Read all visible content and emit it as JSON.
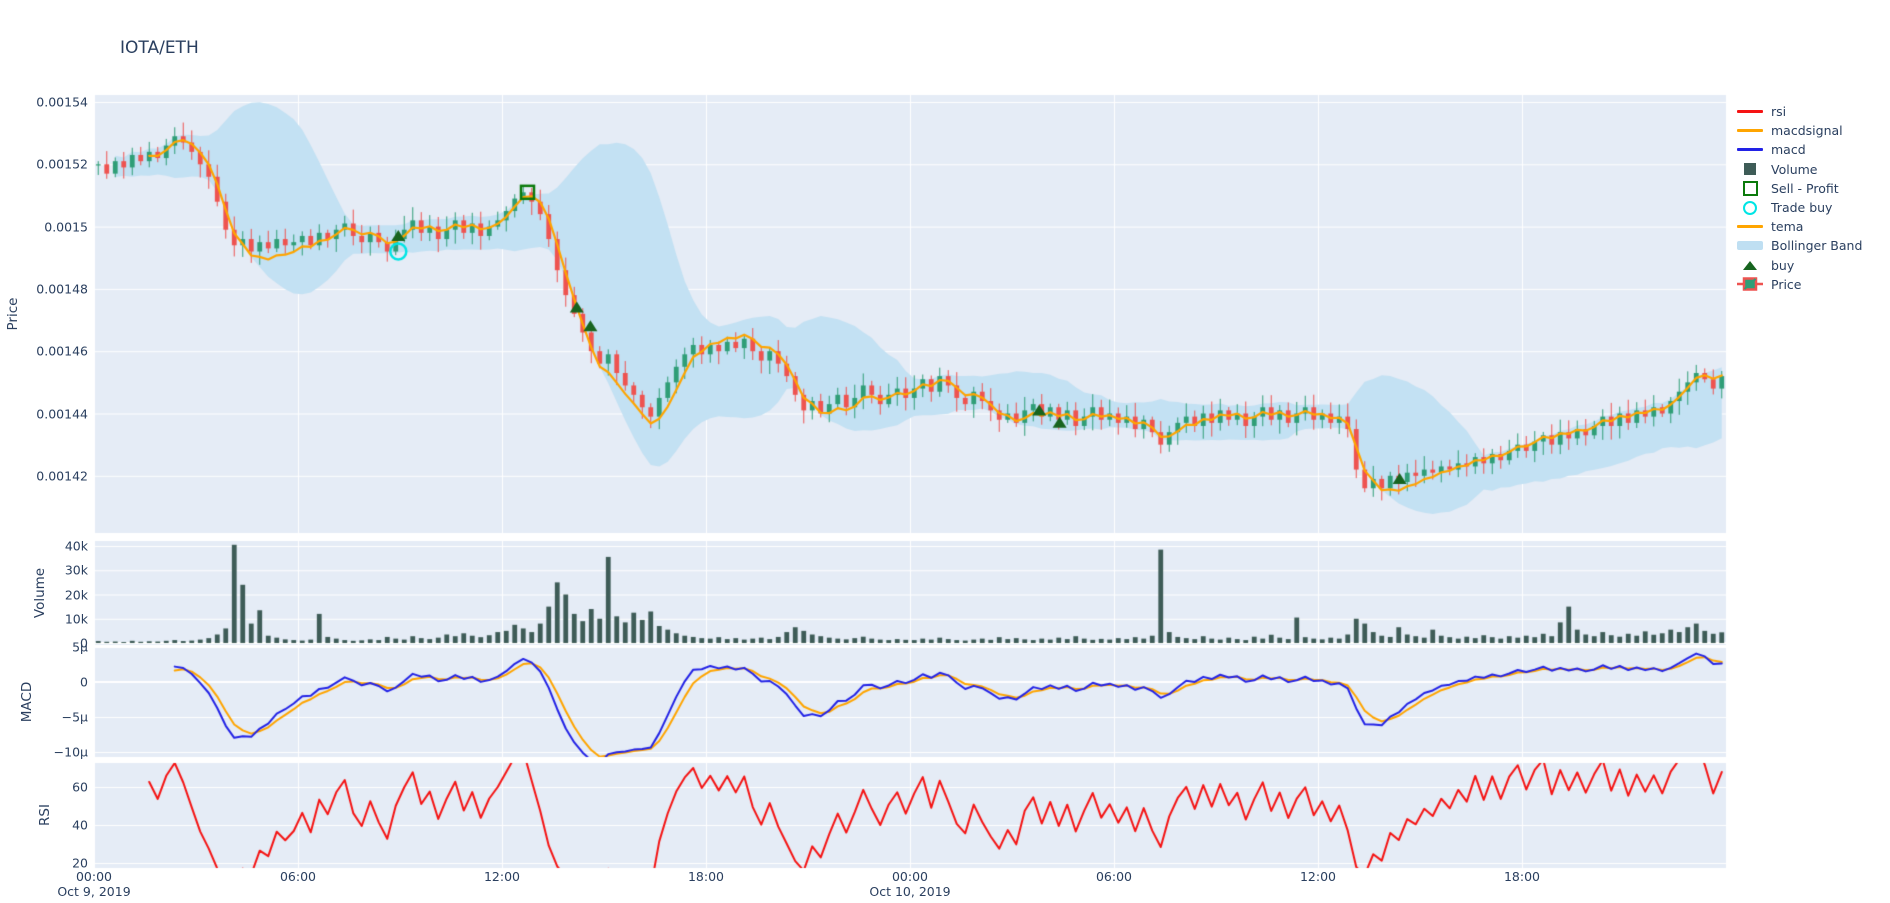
{
  "title": "IOTA/ETH",
  "colors": {
    "plot_bg": "#e5ecf6",
    "grid": "#ffffff",
    "text": "#2a3f5f",
    "candle_up": "#2f9e77",
    "candle_down": "#ee5350",
    "bollinger_fill": "#c3e1f3",
    "tema": "#ffa500",
    "macd": "#2222e6",
    "macdsignal": "#ffa500",
    "rsi": "#f51313",
    "volume_bar": "#3e5c57",
    "buy_marker": "#17641f",
    "sell_marker": "#0b7a0b",
    "trade_buy_marker": "#00e5e5"
  },
  "legend": {
    "items": [
      {
        "label": "rsi",
        "type": "line",
        "color": "#f51313"
      },
      {
        "label": "macdsignal",
        "type": "line",
        "color": "#ffa500"
      },
      {
        "label": "macd",
        "type": "line",
        "color": "#2222e6"
      },
      {
        "label": "Volume",
        "type": "square",
        "color": "#3e5c57"
      },
      {
        "label": "Sell - Profit",
        "type": "square-open",
        "color": "#0b7a0b"
      },
      {
        "label": "Trade buy",
        "type": "circle-open",
        "color": "#00e5e5"
      },
      {
        "label": "tema",
        "type": "line",
        "color": "#ffa500"
      },
      {
        "label": "Bollinger Band",
        "type": "band",
        "color": "#bfdff2"
      },
      {
        "label": "buy",
        "type": "triangle",
        "color": "#17641f"
      },
      {
        "label": "Price",
        "type": "candle",
        "color": "#2f9e77"
      }
    ]
  },
  "axes": {
    "x": {
      "ticks": [
        {
          "t": 0,
          "label": "00:00",
          "date": "Oct 9, 2019"
        },
        {
          "t": 6,
          "label": "06:00"
        },
        {
          "t": 12,
          "label": "12:00"
        },
        {
          "t": 18,
          "label": "18:00"
        },
        {
          "t": 24,
          "label": "00:00",
          "date": "Oct 10, 2019"
        },
        {
          "t": 30,
          "label": "06:00"
        },
        {
          "t": 36,
          "label": "12:00"
        },
        {
          "t": 42,
          "label": "18:00"
        }
      ]
    },
    "price": {
      "title": "Price",
      "ticks": [
        {
          "v": 0.00154,
          "label": "0.00154"
        },
        {
          "v": 0.00152,
          "label": "0.00152"
        },
        {
          "v": 0.0015,
          "label": "0.0015"
        },
        {
          "v": 0.00148,
          "label": "0.00148"
        },
        {
          "v": 0.00146,
          "label": "0.00146"
        },
        {
          "v": 0.00144,
          "label": "0.00144"
        },
        {
          "v": 0.00142,
          "label": "0.00142"
        }
      ]
    },
    "volume": {
      "title": "Volume",
      "ticks": [
        {
          "v": 40,
          "label": "40k"
        },
        {
          "v": 30,
          "label": "30k"
        },
        {
          "v": 20,
          "label": "20k"
        },
        {
          "v": 10,
          "label": "10k"
        },
        {
          "v": 0,
          "label": "0"
        }
      ]
    },
    "macd": {
      "title": "MACD",
      "ticks": [
        {
          "v": 5,
          "label": "5µ"
        },
        {
          "v": 0,
          "label": "0"
        },
        {
          "v": -5,
          "label": "−5µ"
        },
        {
          "v": -10,
          "label": "−10µ"
        }
      ]
    },
    "rsi": {
      "title": "RSI",
      "ticks": [
        {
          "v": 60,
          "label": "60"
        },
        {
          "v": 40,
          "label": "40"
        },
        {
          "v": 20,
          "label": "20"
        }
      ]
    }
  },
  "chart_data": {
    "type": "candlestick",
    "title": "IOTA/ETH",
    "pair": "IOTA/ETH",
    "x_start": "Oct 9, 2019 00:00",
    "x_end": "Oct 10, 2019 24:00",
    "step_hours": 0.25,
    "price_unit_scale": 1e-05,
    "price_axis_range": [
      0.0014016,
      0.0015422
    ],
    "volume_axis_range_k": [
      0,
      42
    ],
    "macd_axis_range_mu": [
      -10.7,
      5.0
    ],
    "rsi_axis_range": [
      17.4,
      72.6
    ],
    "close_1e5": [
      152.0,
      151.7,
      152.1,
      151.9,
      152.3,
      152.1,
      152.4,
      152.2,
      152.6,
      152.9,
      152.7,
      152.4,
      152.0,
      151.6,
      150.8,
      149.9,
      149.4,
      149.6,
      149.2,
      149.5,
      149.3,
      149.6,
      149.4,
      149.5,
      149.7,
      149.4,
      149.8,
      149.6,
      149.9,
      150.1,
      149.7,
      149.5,
      149.8,
      149.5,
      149.2,
      149.6,
      149.9,
      150.2,
      149.8,
      150.0,
      149.6,
      149.9,
      150.2,
      149.8,
      150.1,
      149.7,
      150.0,
      150.2,
      150.5,
      150.9,
      151.1,
      150.8,
      150.4,
      149.6,
      148.6,
      147.8,
      147.2,
      146.6,
      146.0,
      145.6,
      145.9,
      145.3,
      144.9,
      144.6,
      144.2,
      143.9,
      144.5,
      145.0,
      145.5,
      145.9,
      146.2,
      145.9,
      146.2,
      146.0,
      146.3,
      146.1,
      146.4,
      146.0,
      145.7,
      146.0,
      145.6,
      145.2,
      144.6,
      144.1,
      144.4,
      144.0,
      144.3,
      144.6,
      144.2,
      144.5,
      144.9,
      144.6,
      144.3,
      144.6,
      144.8,
      144.5,
      144.8,
      145.1,
      144.7,
      145.2,
      144.9,
      144.5,
      144.3,
      144.7,
      144.4,
      144.1,
      143.8,
      144.0,
      143.7,
      144.1,
      144.3,
      143.9,
      144.2,
      143.8,
      144.1,
      143.6,
      143.9,
      144.2,
      143.8,
      144.0,
      143.7,
      143.9,
      143.5,
      143.8,
      143.4,
      143.0,
      143.4,
      143.7,
      143.9,
      143.6,
      144.0,
      143.7,
      144.1,
      143.8,
      144.0,
      143.6,
      143.9,
      144.2,
      143.8,
      144.1,
      143.7,
      144.0,
      144.2,
      143.8,
      144.0,
      143.7,
      143.9,
      143.5,
      142.2,
      141.6,
      141.9,
      141.6,
      142.0,
      141.8,
      142.1,
      142.0,
      142.2,
      142.1,
      142.3,
      142.2,
      142.4,
      142.3,
      142.6,
      142.4,
      142.7,
      142.5,
      142.8,
      143.0,
      142.8,
      143.1,
      143.3,
      143.0,
      143.4,
      143.2,
      143.5,
      143.3,
      143.6,
      143.9,
      143.6,
      144.0,
      143.7,
      144.1,
      143.9,
      144.2,
      144.0,
      144.4,
      144.7,
      145.0,
      145.3,
      145.1,
      144.8,
      145.2
    ],
    "volume_k": [
      0.8,
      0.5,
      0.6,
      0.4,
      0.9,
      0.5,
      0.7,
      0.6,
      0.9,
      1.2,
      0.8,
      1.0,
      1.4,
      2.0,
      3.5,
      6.0,
      40.5,
      24.0,
      8.0,
      13.5,
      3.0,
      2.2,
      1.5,
      1.2,
      1.0,
      1.4,
      12.0,
      2.5,
      1.8,
      1.2,
      0.9,
      1.1,
      1.5,
      1.2,
      2.5,
      1.8,
      1.4,
      2.8,
      2.0,
      1.6,
      2.2,
      3.5,
      2.8,
      4.0,
      3.0,
      2.4,
      3.2,
      4.5,
      5.0,
      7.5,
      6.0,
      4.5,
      8.0,
      15.0,
      25.0,
      20.0,
      12.0,
      9.0,
      14.0,
      10.0,
      35.5,
      11.0,
      8.5,
      12.5,
      9.5,
      13.0,
      7.0,
      5.5,
      4.0,
      3.0,
      2.5,
      2.0,
      1.8,
      2.4,
      1.6,
      2.0,
      1.4,
      1.8,
      2.2,
      1.6,
      2.5,
      4.5,
      6.5,
      5.0,
      3.5,
      2.8,
      2.2,
      1.8,
      1.5,
      2.0,
      2.6,
      1.8,
      1.4,
      1.2,
      1.6,
      1.3,
      1.2,
      1.8,
      1.4,
      2.2,
      1.6,
      1.2,
      1.0,
      1.4,
      1.8,
      1.3,
      2.4,
      1.6,
      2.0,
      1.5,
      1.2,
      1.8,
      1.4,
      2.2,
      1.6,
      2.8,
      1.8,
      1.3,
      1.7,
      1.4,
      2.0,
      1.6,
      2.4,
      1.8,
      3.0,
      38.5,
      4.5,
      2.5,
      2.0,
      1.6,
      2.8,
      1.8,
      1.4,
      2.2,
      1.6,
      1.2,
      2.6,
      1.8,
      3.4,
      2.2,
      1.6,
      10.5,
      2.4,
      1.8,
      1.5,
      2.2,
      1.8,
      3.5,
      10.0,
      8.0,
      4.5,
      3.0,
      2.5,
      6.5,
      3.5,
      2.8,
      2.2,
      5.5,
      3.0,
      2.4,
      1.8,
      2.6,
      2.0,
      3.2,
      2.4,
      1.8,
      2.8,
      2.2,
      3.0,
      2.4,
      3.8,
      2.8,
      8.5,
      15.0,
      5.5,
      3.5,
      2.8,
      4.5,
      3.2,
      2.6,
      3.8,
      3.0,
      4.8,
      3.4,
      4.0,
      5.5,
      4.5,
      6.5,
      8.0,
      5.0,
      3.8,
      4.4
    ],
    "indicators": {
      "bollinger": {
        "window": 16,
        "mult": 2
      },
      "tema": {
        "period": 9
      },
      "macd": {
        "fast": 4,
        "slow": 9,
        "signal": 3,
        "plot_scale_mu_per_unit": 10
      },
      "rsi": {
        "period": 5
      }
    },
    "markers": {
      "sell_profit": [
        {
          "t": 12.75,
          "price": 0.001511
        }
      ],
      "trade_buy": [
        {
          "t": 8.95,
          "price": 0.001492
        }
      ],
      "buy": [
        {
          "t": 8.95,
          "price": 0.001497
        },
        {
          "t": 14.2,
          "price": 0.001474
        },
        {
          "t": 14.6,
          "price": 0.001468
        },
        {
          "t": 27.8,
          "price": 0.001441
        },
        {
          "t": 28.4,
          "price": 0.001437
        },
        {
          "t": 38.4,
          "price": 0.001419
        }
      ]
    }
  }
}
